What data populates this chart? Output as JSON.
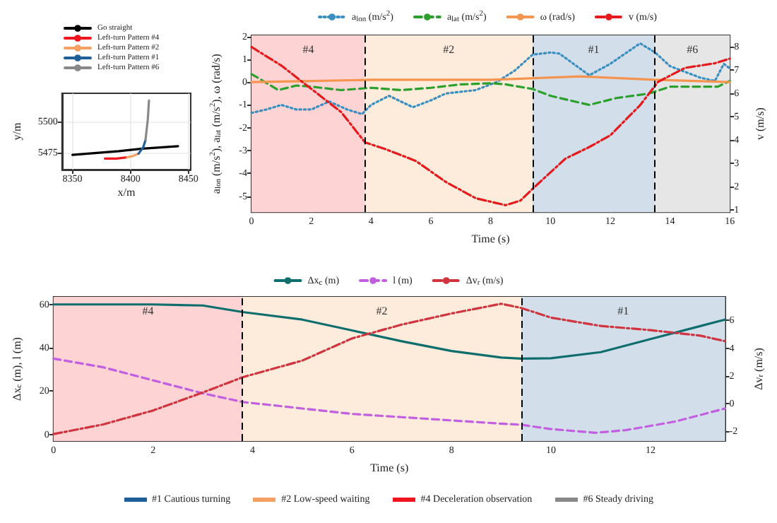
{
  "chart_data": [
    {
      "type": "line",
      "xlabel": "x/m",
      "ylabel": "y/m",
      "xlim": [
        8341,
        8452
      ],
      "ylim": [
        5461,
        5523
      ],
      "xticks": [
        8350,
        8400,
        8450
      ],
      "yticks": [
        5475,
        5500
      ],
      "grid": true,
      "legend": "top",
      "series": [
        {
          "name": "Go straight",
          "color": "#000000",
          "x": [
            8350,
            8390,
            8410,
            8441
          ],
          "values": [
            5473,
            5476,
            5478,
            5480
          ]
        },
        {
          "name": "Left-turn Pattern #4",
          "color": "#f0141e",
          "x": [
            8378,
            8388,
            8397
          ],
          "values": [
            5470,
            5470,
            5471
          ]
        },
        {
          "name": "Left-turn Pattern #2",
          "color": "#f4a064",
          "x": [
            8397,
            8402,
            8407
          ],
          "values": [
            5471,
            5472,
            5474
          ]
        },
        {
          "name": "Left-turn Pattern #1",
          "color": "#1f5f99",
          "x": [
            8407,
            8411,
            8413
          ],
          "values": [
            5474,
            5479,
            5485
          ]
        },
        {
          "name": "Left-turn Pattern #6",
          "color": "#888888",
          "x": [
            8413,
            8415,
            8416
          ],
          "values": [
            5485,
            5502,
            5517
          ]
        }
      ]
    },
    {
      "type": "line",
      "xlabel": "Time (s)",
      "ylabel": "a$_{lon}$ (m/s$^{2}$), a$_{lat}$ (m/s$^{2}$), ω (rad/s)",
      "y2label": "v (m/s)",
      "xlim": [
        0,
        16
      ],
      "ylim": [
        -5.7,
        2.05
      ],
      "y2lim": [
        0.9,
        8.5
      ],
      "xticks": [
        0,
        2,
        4,
        6,
        8,
        10,
        12,
        14,
        16
      ],
      "yticks": [
        -5,
        -4,
        -3,
        -2,
        -1,
        0,
        1,
        2
      ],
      "y2ticks": [
        1,
        2,
        3,
        4,
        5,
        6,
        7,
        8
      ],
      "grid": true,
      "legend": "top",
      "bands": [
        {
          "axis": "x",
          "from": 0,
          "to": 3.8,
          "label": "#4",
          "color": "#fdd3d4"
        },
        {
          "axis": "x",
          "from": 3.8,
          "to": 9.4,
          "label": "#2",
          "color": "#fdebdb"
        },
        {
          "axis": "x",
          "from": 9.4,
          "to": 13.5,
          "label": "#1",
          "color": "#d3deeb"
        },
        {
          "axis": "x",
          "from": 13.5,
          "to": 16,
          "label": "#6",
          "color": "#e6e6e6"
        }
      ],
      "ref_lines": [
        {
          "axis": "x",
          "value": 3.8,
          "color": "#000000",
          "line_style": "dashed"
        },
        {
          "axis": "x",
          "value": 9.4,
          "color": "#000000",
          "line_style": "dashed"
        },
        {
          "axis": "x",
          "value": 13.5,
          "color": "#000000",
          "line_style": "dashed"
        }
      ],
      "series": [
        {
          "name": "a$_{lon}$ (m/s$^{2}$)",
          "color": "#3a8fc0",
          "line_style": "dotted",
          "x": [
            0,
            0.5,
            1,
            1.5,
            2,
            2.6,
            3.2,
            3.7,
            4,
            4.6,
            5.4,
            6,
            6.5,
            7.5,
            8.2,
            8.8,
            9.4,
            10,
            10.3,
            11.3,
            12,
            13,
            13.5,
            14,
            15,
            15.5,
            15.8,
            16
          ],
          "values": [
            -1.35,
            -1.2,
            -1.0,
            -1.2,
            -1.2,
            -0.85,
            -1.2,
            -1.4,
            -1.0,
            -0.6,
            -1.1,
            -0.8,
            -0.5,
            -0.35,
            0,
            0.5,
            1.2,
            1.3,
            1.25,
            0.3,
            0.8,
            1.7,
            1.3,
            0.7,
            0.2,
            0.05,
            0.8,
            0.6
          ]
        },
        {
          "name": "a$_{lat}$ (m/s$^{2}$)",
          "color": "#2ca02c",
          "line_style": "dashed",
          "x": [
            0,
            0.2,
            0.9,
            1.5,
            2,
            3,
            4,
            5,
            6,
            7,
            8,
            8.5,
            9.4,
            10,
            11.3,
            12.2,
            13.3,
            14,
            15,
            15.6,
            16
          ],
          "values": [
            0.35,
            0.2,
            -0.35,
            -0.15,
            -0.2,
            -0.35,
            -0.25,
            -0.35,
            -0.25,
            -0.1,
            -0.05,
            -0.1,
            -0.3,
            -0.6,
            -1.0,
            -0.7,
            -0.5,
            -0.2,
            -0.2,
            -0.2,
            0.05
          ]
        },
        {
          "name": "ω (rad/s)",
          "color": "#f5944f",
          "line_style": "solid",
          "x": [
            0,
            2,
            4,
            8,
            11,
            13.5,
            16
          ],
          "values": [
            0,
            0.05,
            0.1,
            0.1,
            0.25,
            0.1,
            0
          ]
        },
        {
          "name": "v (m/s)",
          "color": "#e41a1c",
          "line_style": "dashdot",
          "axis": "y2",
          "x": [
            0,
            1,
            2,
            3,
            3.8,
            4.5,
            5.5,
            6.5,
            7.5,
            8.5,
            9,
            9.4,
            10.5,
            11.3,
            12,
            13,
            13.6,
            14.5,
            15.5,
            16
          ],
          "values": [
            8.0,
            7.2,
            6.2,
            5.2,
            3.9,
            3.6,
            3.1,
            2.2,
            1.5,
            1.2,
            1.4,
            1.9,
            3.2,
            3.7,
            4.2,
            5.5,
            6.5,
            7.1,
            7.3,
            7.5
          ]
        }
      ]
    },
    {
      "type": "line",
      "xlabel": "Time (s)",
      "ylabel": "Δx$_{c}$ (m), l (m)",
      "y2label": "Δv$_{r}$ (m/s)",
      "xlim": [
        0,
        13.5
      ],
      "ylim": [
        -3,
        63.5
      ],
      "y2lim": [
        -2.7,
        7.7
      ],
      "xticks": [
        0,
        2,
        4,
        6,
        8,
        10,
        12
      ],
      "yticks": [
        0,
        20,
        40,
        60
      ],
      "y2ticks": [
        -2,
        0,
        2,
        4,
        6
      ],
      "grid": true,
      "legend": "top",
      "bands": [
        {
          "axis": "x",
          "from": 0,
          "to": 3.8,
          "label": "#4",
          "color": "#fdd3d4"
        },
        {
          "axis": "x",
          "from": 3.8,
          "to": 9.4,
          "label": "#2",
          "color": "#fdebdb"
        },
        {
          "axis": "x",
          "from": 9.4,
          "to": 13.5,
          "label": "#1",
          "color": "#d3deeb"
        }
      ],
      "ref_lines": [
        {
          "axis": "x",
          "value": 3.8,
          "color": "#000000",
          "line_style": "dashed"
        },
        {
          "axis": "x",
          "value": 9.4,
          "color": "#000000",
          "line_style": "dashed"
        }
      ],
      "annotations": [
        "#1 Cautious turning",
        "#2 Low-speed waiting",
        "#4 Deceleration observation",
        "#6 Steady driving"
      ],
      "series": [
        {
          "name": "Δx$_{c}$ (m)",
          "color": "#0e6e6e",
          "line_style": "solid",
          "x": [
            0,
            2,
            3,
            3.8,
            5,
            6,
            7,
            8,
            9,
            9.4,
            10,
            11,
            12,
            13,
            13.5
          ],
          "values": [
            60,
            60,
            59.5,
            56.5,
            53,
            48,
            43,
            38.5,
            35.5,
            35,
            35.2,
            38,
            44,
            50,
            53
          ]
        },
        {
          "name": "l (m)",
          "color": "#c25fe0",
          "line_style": "dashed",
          "x": [
            0,
            1,
            2,
            3,
            3.8,
            5,
            6,
            7,
            8,
            9,
            9.4,
            10,
            10.9,
            11.5,
            12.5,
            13.5
          ],
          "values": [
            35,
            31,
            25,
            19,
            15,
            12,
            9.5,
            8,
            6.5,
            5,
            4.5,
            2.5,
            0.8,
            2,
            6,
            12
          ]
        },
        {
          "name": "Δv$_{r}$ (m/s)",
          "color": "#d0343f",
          "line_style": "dashdot",
          "axis": "y2",
          "x": [
            0,
            1,
            2,
            3,
            3.8,
            5,
            6,
            7,
            8,
            9,
            9.4,
            10,
            11,
            12,
            13,
            13.5
          ],
          "values": [
            -2.2,
            -1.5,
            -0.5,
            0.8,
            1.9,
            3.1,
            4.7,
            5.7,
            6.5,
            7.2,
            6.9,
            6.2,
            5.6,
            5.3,
            4.9,
            4.5
          ]
        }
      ]
    }
  ]
}
